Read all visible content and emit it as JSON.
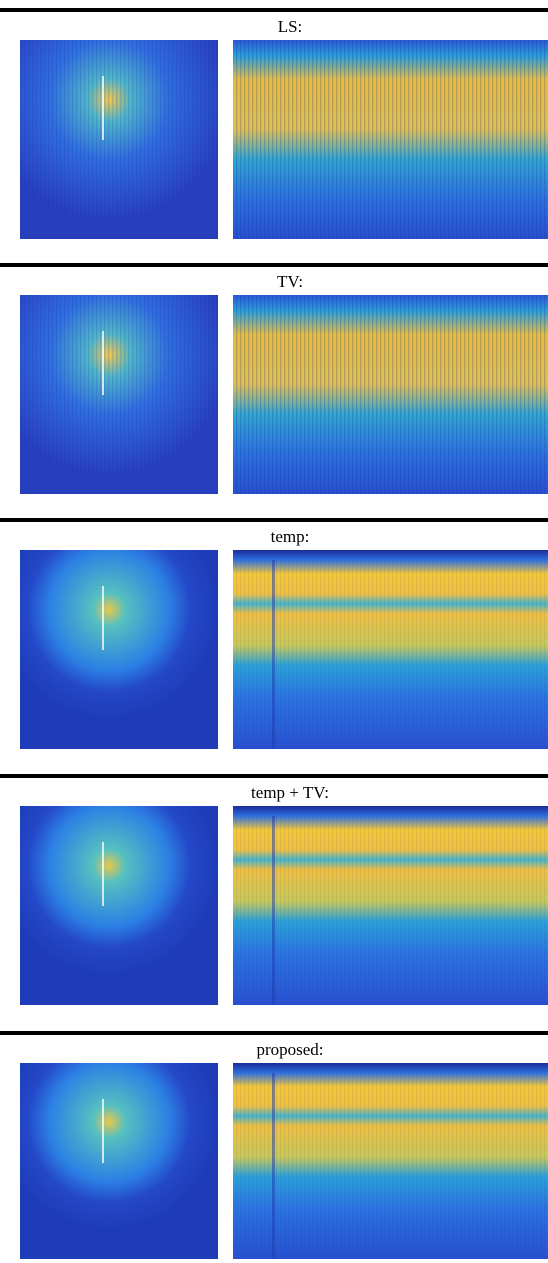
{
  "panels": [
    {
      "label": "LS:"
    },
    {
      "label": "TV:"
    },
    {
      "label": "temp:"
    },
    {
      "label": "temp + TV:"
    },
    {
      "label": "proposed:"
    }
  ]
}
